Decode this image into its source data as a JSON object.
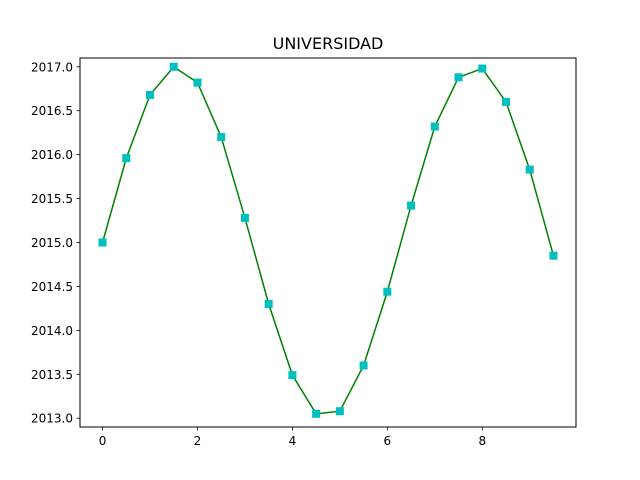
{
  "chart_data": {
    "type": "line",
    "title": "UNIVERSIDAD",
    "xlabel": "",
    "ylabel": "",
    "xlim": [
      -0.475,
      9.975
    ],
    "ylim": [
      2012.9,
      2017.1
    ],
    "xticks": [
      0,
      2,
      4,
      6,
      8
    ],
    "xtick_labels": [
      "0",
      "2",
      "4",
      "6",
      "8"
    ],
    "yticks": [
      2013.0,
      2013.5,
      2014.0,
      2014.5,
      2015.0,
      2015.5,
      2016.0,
      2016.5,
      2017.0
    ],
    "ytick_labels": [
      "2013.0",
      "2013.5",
      "2014.0",
      "2014.5",
      "2015.0",
      "2015.5",
      "2016.0",
      "2016.5",
      "2017.0"
    ],
    "grid": false,
    "series": [
      {
        "line_color": "#008000",
        "marker_color": "#00bfbf",
        "marker": "square",
        "x": [
          0,
          0.5,
          1,
          1.5,
          2,
          2.5,
          3,
          3.5,
          4,
          4.5,
          5,
          5.5,
          6,
          6.5,
          7,
          7.5,
          8,
          8.5,
          9,
          9.5
        ],
        "y": [
          2015.0,
          2015.96,
          2016.68,
          2017.0,
          2016.82,
          2016.2,
          2015.28,
          2014.3,
          2013.49,
          2013.05,
          2013.08,
          2013.6,
          2014.44,
          2015.42,
          2016.32,
          2016.88,
          2016.98,
          2016.6,
          2015.83,
          2014.85
        ]
      }
    ]
  }
}
